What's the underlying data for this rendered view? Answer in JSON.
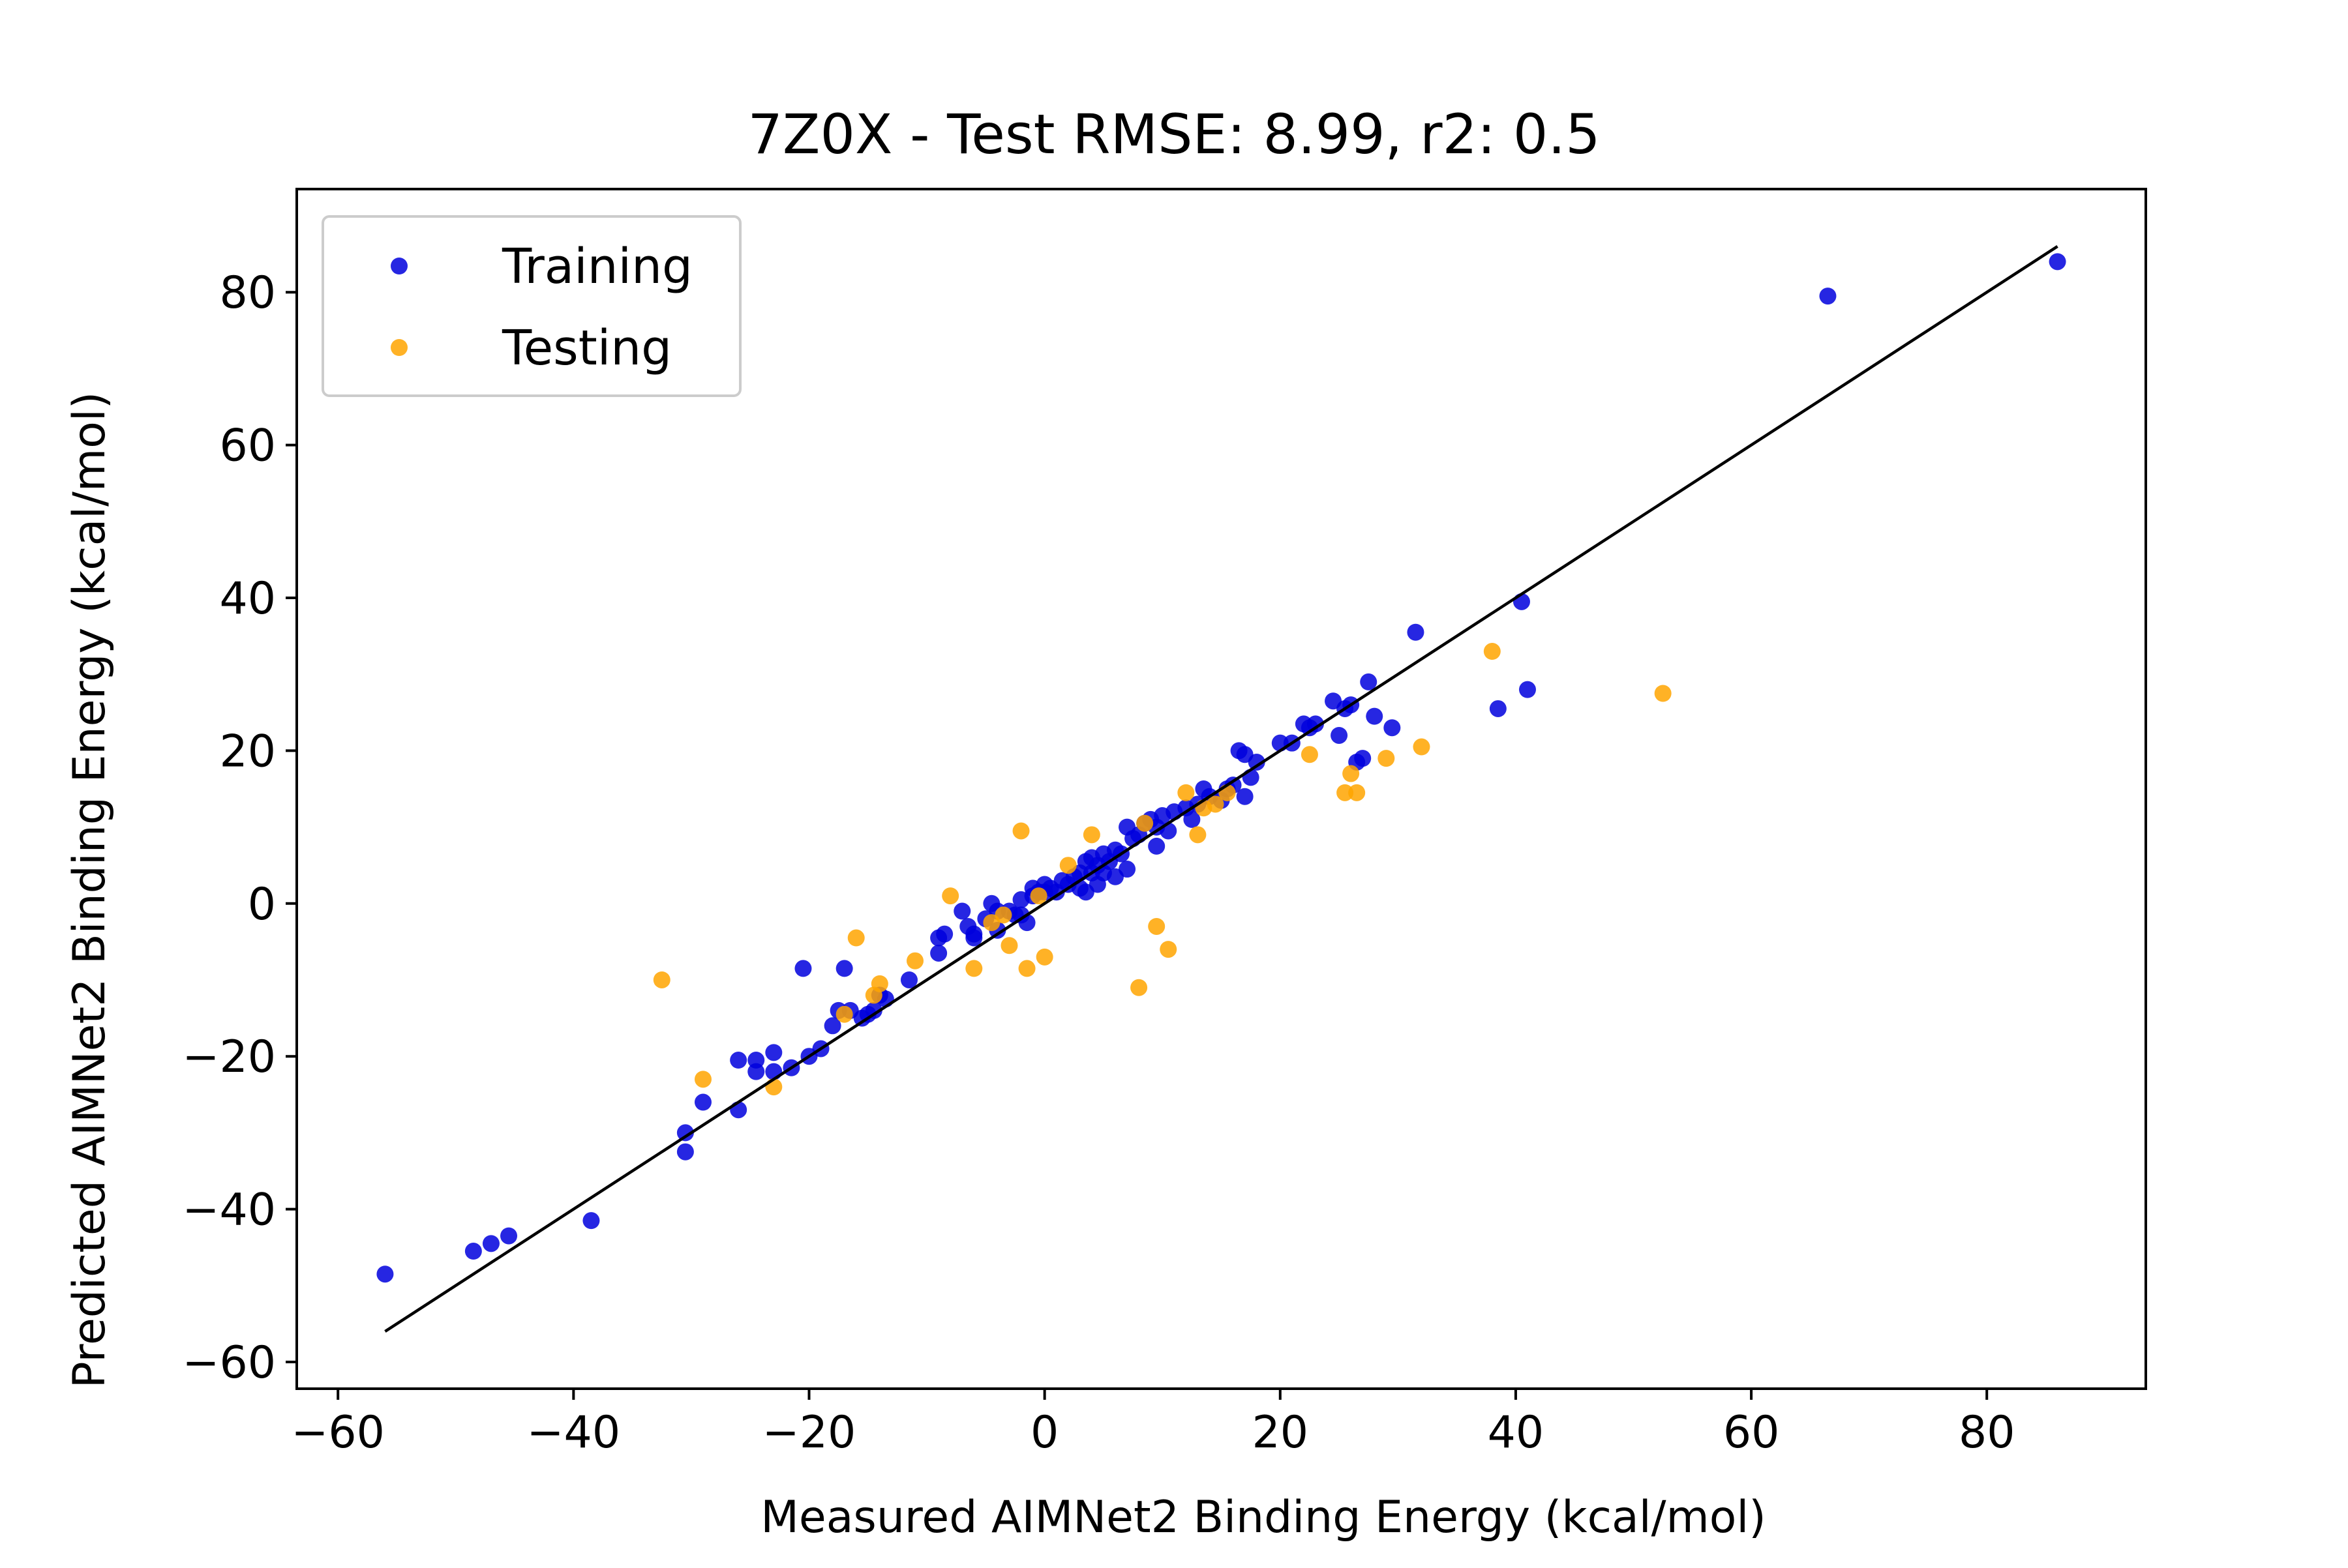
{
  "chart_data": {
    "type": "scatter",
    "title": "7Z0X - Test RMSE: 8.99, r2: 0.5",
    "xlabel": "Measured AIMNet2 Binding Energy (kcal/mol)",
    "ylabel": "Predicted AIMNet2 Binding Energy (kcal/mol)",
    "xlim": [
      -63.5,
      93.5
    ],
    "ylim": [
      -63.5,
      93.5
    ],
    "xticks": [
      -60,
      -40,
      -20,
      0,
      20,
      40,
      60,
      80
    ],
    "yticks": [
      -60,
      -40,
      -20,
      0,
      20,
      40,
      60,
      80
    ],
    "xtick_labels": [
      "−60",
      "−40",
      "−20",
      "0",
      "20",
      "40",
      "60",
      "80"
    ],
    "ytick_labels": [
      "−60",
      "−40",
      "−20",
      "0",
      "20",
      "40",
      "60",
      "80"
    ],
    "grid": false,
    "legend_position": "upper-left",
    "reference_line": {
      "x": [
        -56,
        86
      ],
      "y": [
        -56,
        86
      ],
      "color": "#000000"
    },
    "series": [
      {
        "name": "Training",
        "color": "#0000dd",
        "points": [
          [
            -56,
            -48.5
          ],
          [
            -48.5,
            -45.5
          ],
          [
            -47,
            -44.5
          ],
          [
            -45.5,
            -43.5
          ],
          [
            -38.5,
            -41.5
          ],
          [
            -30.5,
            -30
          ],
          [
            -30.5,
            -32.5
          ],
          [
            -29,
            -26
          ],
          [
            -26,
            -20.5
          ],
          [
            -26,
            -27
          ],
          [
            -24.5,
            -20.5
          ],
          [
            -24.5,
            -22
          ],
          [
            -23,
            -19.5
          ],
          [
            -23,
            -22
          ],
          [
            -21.5,
            -21.5
          ],
          [
            -20.5,
            -8.5
          ],
          [
            -20,
            -20
          ],
          [
            -19,
            -19
          ],
          [
            -18,
            -16
          ],
          [
            -17.5,
            -14
          ],
          [
            -17,
            -8.5
          ],
          [
            -16.5,
            -14
          ],
          [
            -15.5,
            -15
          ],
          [
            -15,
            -14.5
          ],
          [
            -14.5,
            -14
          ],
          [
            -14,
            -12
          ],
          [
            -13.5,
            -12.5
          ],
          [
            -11.5,
            -10
          ],
          [
            -9,
            -4.5
          ],
          [
            -9,
            -6.5
          ],
          [
            -8.5,
            -4
          ],
          [
            -7,
            -1
          ],
          [
            -6.5,
            -3
          ],
          [
            -6,
            -4.5
          ],
          [
            -6,
            -4
          ],
          [
            -5,
            -2
          ],
          [
            -4.5,
            0
          ],
          [
            -4,
            -1
          ],
          [
            -4,
            -3.5
          ],
          [
            -3,
            -1
          ],
          [
            -2.5,
            -1.5
          ],
          [
            -2,
            0.5
          ],
          [
            -2,
            -1.5
          ],
          [
            -1.5,
            -2.5
          ],
          [
            -1,
            1
          ],
          [
            -1,
            2
          ],
          [
            -0.5,
            1.5
          ],
          [
            0,
            1.5
          ],
          [
            0,
            2.5
          ],
          [
            0.5,
            2
          ],
          [
            1,
            1.5
          ],
          [
            1.5,
            3
          ],
          [
            2,
            2.5
          ],
          [
            2.5,
            3.5
          ],
          [
            3,
            4
          ],
          [
            3,
            2
          ],
          [
            3.5,
            5.5
          ],
          [
            3.5,
            1.5
          ],
          [
            4,
            6
          ],
          [
            4,
            4
          ],
          [
            4.5,
            5
          ],
          [
            4.5,
            2.5
          ],
          [
            5,
            6.5
          ],
          [
            5,
            4
          ],
          [
            5.5,
            5.5
          ],
          [
            6,
            7
          ],
          [
            6,
            3.5
          ],
          [
            6.5,
            6.5
          ],
          [
            7,
            10
          ],
          [
            7,
            4.5
          ],
          [
            7.5,
            8.5
          ],
          [
            8,
            9
          ],
          [
            8.5,
            10.5
          ],
          [
            9,
            11
          ],
          [
            9.5,
            10
          ],
          [
            9.5,
            7.5
          ],
          [
            10,
            11.5
          ],
          [
            10.5,
            9.5
          ],
          [
            11,
            12
          ],
          [
            12,
            12.5
          ],
          [
            12.5,
            11
          ],
          [
            13,
            13
          ],
          [
            13.5,
            15
          ],
          [
            14,
            14
          ],
          [
            15,
            13.5
          ],
          [
            15.5,
            15
          ],
          [
            16,
            15.5
          ],
          [
            16.5,
            20
          ],
          [
            17,
            19.5
          ],
          [
            17,
            14
          ],
          [
            17.5,
            16.5
          ],
          [
            18,
            18.5
          ],
          [
            20,
            21
          ],
          [
            21,
            21
          ],
          [
            22,
            23.5
          ],
          [
            22.5,
            23
          ],
          [
            23,
            23.5
          ],
          [
            24.5,
            26.5
          ],
          [
            25,
            22
          ],
          [
            25.5,
            25.5
          ],
          [
            26,
            26
          ],
          [
            26.5,
            18.5
          ],
          [
            27,
            19
          ],
          [
            27.5,
            29
          ],
          [
            28,
            24.5
          ],
          [
            29.5,
            23
          ],
          [
            31.5,
            35.5
          ],
          [
            38.5,
            25.5
          ],
          [
            40.5,
            39.5
          ],
          [
            41,
            28
          ],
          [
            66.5,
            79.5
          ],
          [
            86,
            84
          ]
        ]
      },
      {
        "name": "Testing",
        "color": "#ffa500",
        "points": [
          [
            -32.5,
            -10
          ],
          [
            -29,
            -23
          ],
          [
            -23,
            -24
          ],
          [
            -17,
            -14.5
          ],
          [
            -16,
            -4.5
          ],
          [
            -14.5,
            -12
          ],
          [
            -14,
            -10.5
          ],
          [
            -11,
            -7.5
          ],
          [
            -8,
            1
          ],
          [
            -6,
            -8.5
          ],
          [
            -4.5,
            -2.5
          ],
          [
            -3.5,
            -1.5
          ],
          [
            -3,
            -5.5
          ],
          [
            -2,
            9.5
          ],
          [
            -1.5,
            -8.5
          ],
          [
            -0.5,
            1
          ],
          [
            0,
            -7
          ],
          [
            2,
            5
          ],
          [
            4,
            9
          ],
          [
            8,
            -11
          ],
          [
            8.5,
            10.5
          ],
          [
            9.5,
            -3
          ],
          [
            10.5,
            -6
          ],
          [
            12,
            14.5
          ],
          [
            13,
            9
          ],
          [
            13.5,
            12.5
          ],
          [
            14.5,
            13
          ],
          [
            15.5,
            14.5
          ],
          [
            22.5,
            19.5
          ],
          [
            25.5,
            14.5
          ],
          [
            26,
            17
          ],
          [
            26.5,
            14.5
          ],
          [
            29,
            19
          ],
          [
            32,
            20.5
          ],
          [
            38,
            33
          ],
          [
            52.5,
            27.5
          ]
        ]
      }
    ]
  }
}
